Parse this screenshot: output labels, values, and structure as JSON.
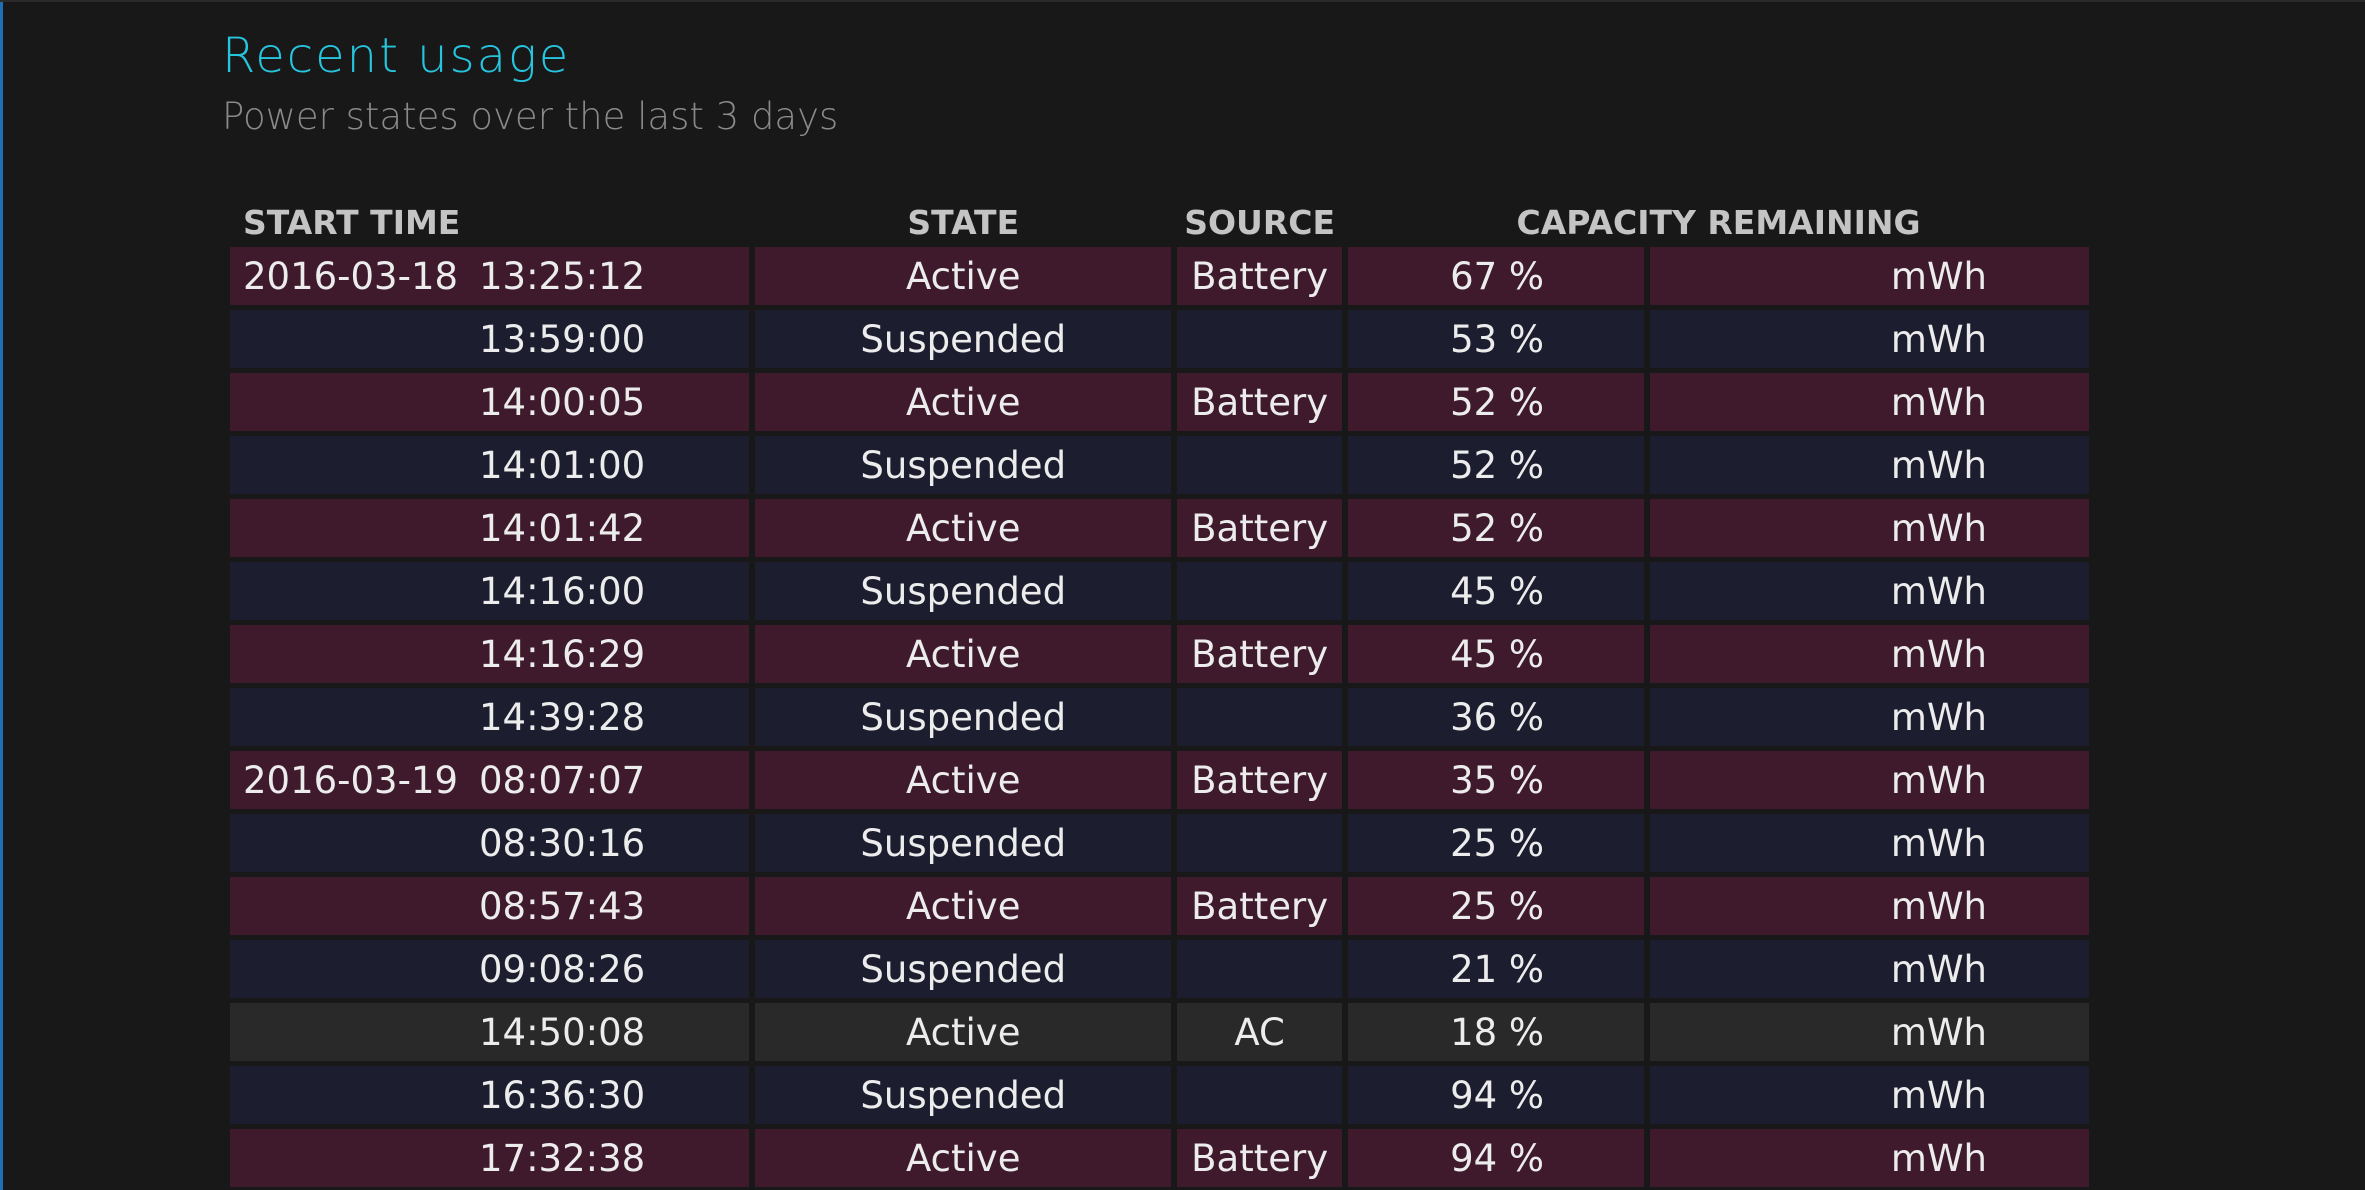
{
  "header": {
    "title": "Recent usage",
    "subtitle": "Power states over the last 3 days"
  },
  "table": {
    "columns": {
      "start_time": "START TIME",
      "state": "STATE",
      "source": "SOURCE",
      "capacity": "CAPACITY REMAINING"
    },
    "rows": [
      {
        "date": "2016-03-18",
        "time": "13:25:12",
        "state": "Active",
        "source": "Battery",
        "percent": "67 %",
        "mwh": "mWh"
      },
      {
        "date": "",
        "time": "13:59:00",
        "state": "Suspended",
        "source": "",
        "percent": "53 %",
        "mwh": "mWh"
      },
      {
        "date": "",
        "time": "14:00:05",
        "state": "Active",
        "source": "Battery",
        "percent": "52 %",
        "mwh": "mWh"
      },
      {
        "date": "",
        "time": "14:01:00",
        "state": "Suspended",
        "source": "",
        "percent": "52 %",
        "mwh": "mWh"
      },
      {
        "date": "",
        "time": "14:01:42",
        "state": "Active",
        "source": "Battery",
        "percent": "52 %",
        "mwh": "mWh"
      },
      {
        "date": "",
        "time": "14:16:00",
        "state": "Suspended",
        "source": "",
        "percent": "45 %",
        "mwh": "mWh"
      },
      {
        "date": "",
        "time": "14:16:29",
        "state": "Active",
        "source": "Battery",
        "percent": "45 %",
        "mwh": "mWh"
      },
      {
        "date": "",
        "time": "14:39:28",
        "state": "Suspended",
        "source": "",
        "percent": "36 %",
        "mwh": "mWh"
      },
      {
        "date": "2016-03-19",
        "time": "08:07:07",
        "state": "Active",
        "source": "Battery",
        "percent": "35 %",
        "mwh": "mWh"
      },
      {
        "date": "",
        "time": "08:30:16",
        "state": "Suspended",
        "source": "",
        "percent": "25 %",
        "mwh": "mWh"
      },
      {
        "date": "",
        "time": "08:57:43",
        "state": "Active",
        "source": "Battery",
        "percent": "25 %",
        "mwh": "mWh"
      },
      {
        "date": "",
        "time": "09:08:26",
        "state": "Suspended",
        "source": "",
        "percent": "21 %",
        "mwh": "mWh"
      },
      {
        "date": "",
        "time": "14:50:08",
        "state": "Active",
        "source": "AC",
        "percent": "18 %",
        "mwh": "mWh"
      },
      {
        "date": "",
        "time": "16:36:30",
        "state": "Suspended",
        "source": "",
        "percent": "94 %",
        "mwh": "mWh"
      },
      {
        "date": "",
        "time": "17:32:38",
        "state": "Active",
        "source": "Battery",
        "percent": "94 %",
        "mwh": "mWh"
      }
    ]
  },
  "colors": {
    "title": "#27c4de",
    "subtitle": "#8a8a8a",
    "background": "#181818",
    "row_active_battery": "#3e1a2c",
    "row_suspended": "#1d1d30",
    "row_active_ac": "#292929",
    "window_edge": "#1e6fb8"
  }
}
